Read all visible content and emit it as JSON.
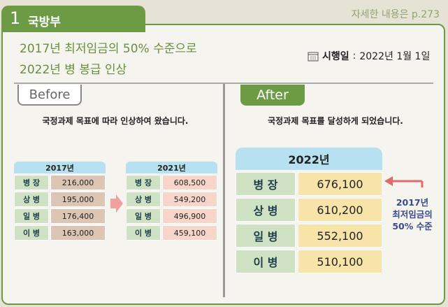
{
  "header": {
    "number": "1",
    "ministry": "국방부",
    "reference": "자세한 내용은 p.273"
  },
  "headline": {
    "lines": [
      "2017년 최저임금의 50% 수준으로",
      "2022년 병 봉급 인상"
    ],
    "effective_label": "시행일",
    "effective_separator": ":",
    "effective_date": "2022년 1월 1일"
  },
  "before": {
    "label": "Before",
    "caption": "국정과제 목표에 따라 인상하여 왔습니다.",
    "tables": [
      {
        "year": "2017년",
        "rows": [
          [
            "병 장",
            "216,000"
          ],
          [
            "상 병",
            "195,000"
          ],
          [
            "일 병",
            "176,400"
          ],
          [
            "이 병",
            "163,000"
          ]
        ]
      },
      {
        "year": "2021년",
        "rows": [
          [
            "병 장",
            "608,500"
          ],
          [
            "상 병",
            "549,200"
          ],
          [
            "일 병",
            "496,900"
          ],
          [
            "이 병",
            "459,100"
          ]
        ]
      }
    ]
  },
  "after": {
    "label": "After",
    "caption": "국정과제 목표를 달성하게 되었습니다.",
    "table": {
      "year": "2022년",
      "rows": [
        [
          "병 장",
          "676,100"
        ],
        [
          "상 병",
          "610,200"
        ],
        [
          "일 병",
          "552,100"
        ],
        [
          "이 병",
          "510,100"
        ]
      ]
    },
    "note": [
      "2017년",
      "최저임금의",
      "50% 수준"
    ]
  }
}
